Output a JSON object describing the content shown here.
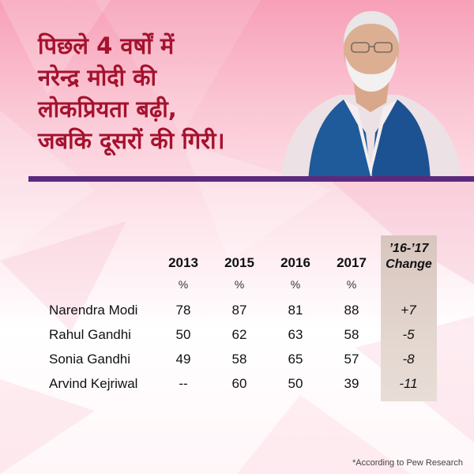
{
  "headline": {
    "lines": [
      "पिछले 4 वर्षों में",
      "नरेन्द्र मोदी की",
      "लोकप्रियता बढ़ी,",
      "जबकि दूसरों की गिरी।"
    ]
  },
  "colors": {
    "headline": "#a4122e",
    "rule": "#5b2a7e",
    "change_column": "#dcccc4"
  },
  "chart_data": {
    "type": "table",
    "columns": [
      "2013",
      "2015",
      "2016",
      "2017"
    ],
    "unit_labels": [
      "%",
      "%",
      "%",
      "%"
    ],
    "change_header": [
      "’16-’17",
      "Change"
    ],
    "rows": [
      {
        "name": "Narendra Modi",
        "values": [
          "78",
          "87",
          "81",
          "88"
        ],
        "change": "+7"
      },
      {
        "name": "Rahul Gandhi",
        "values": [
          "50",
          "62",
          "63",
          "58"
        ],
        "change": "-5"
      },
      {
        "name": "Sonia Gandhi",
        "values": [
          "49",
          "58",
          "65",
          "57"
        ],
        "change": "-8"
      },
      {
        "name": "Arvind Kejriwal",
        "values": [
          "--",
          "60",
          "50",
          "39"
        ],
        "change": "-11"
      }
    ]
  },
  "footnote": "*According to Pew Research"
}
